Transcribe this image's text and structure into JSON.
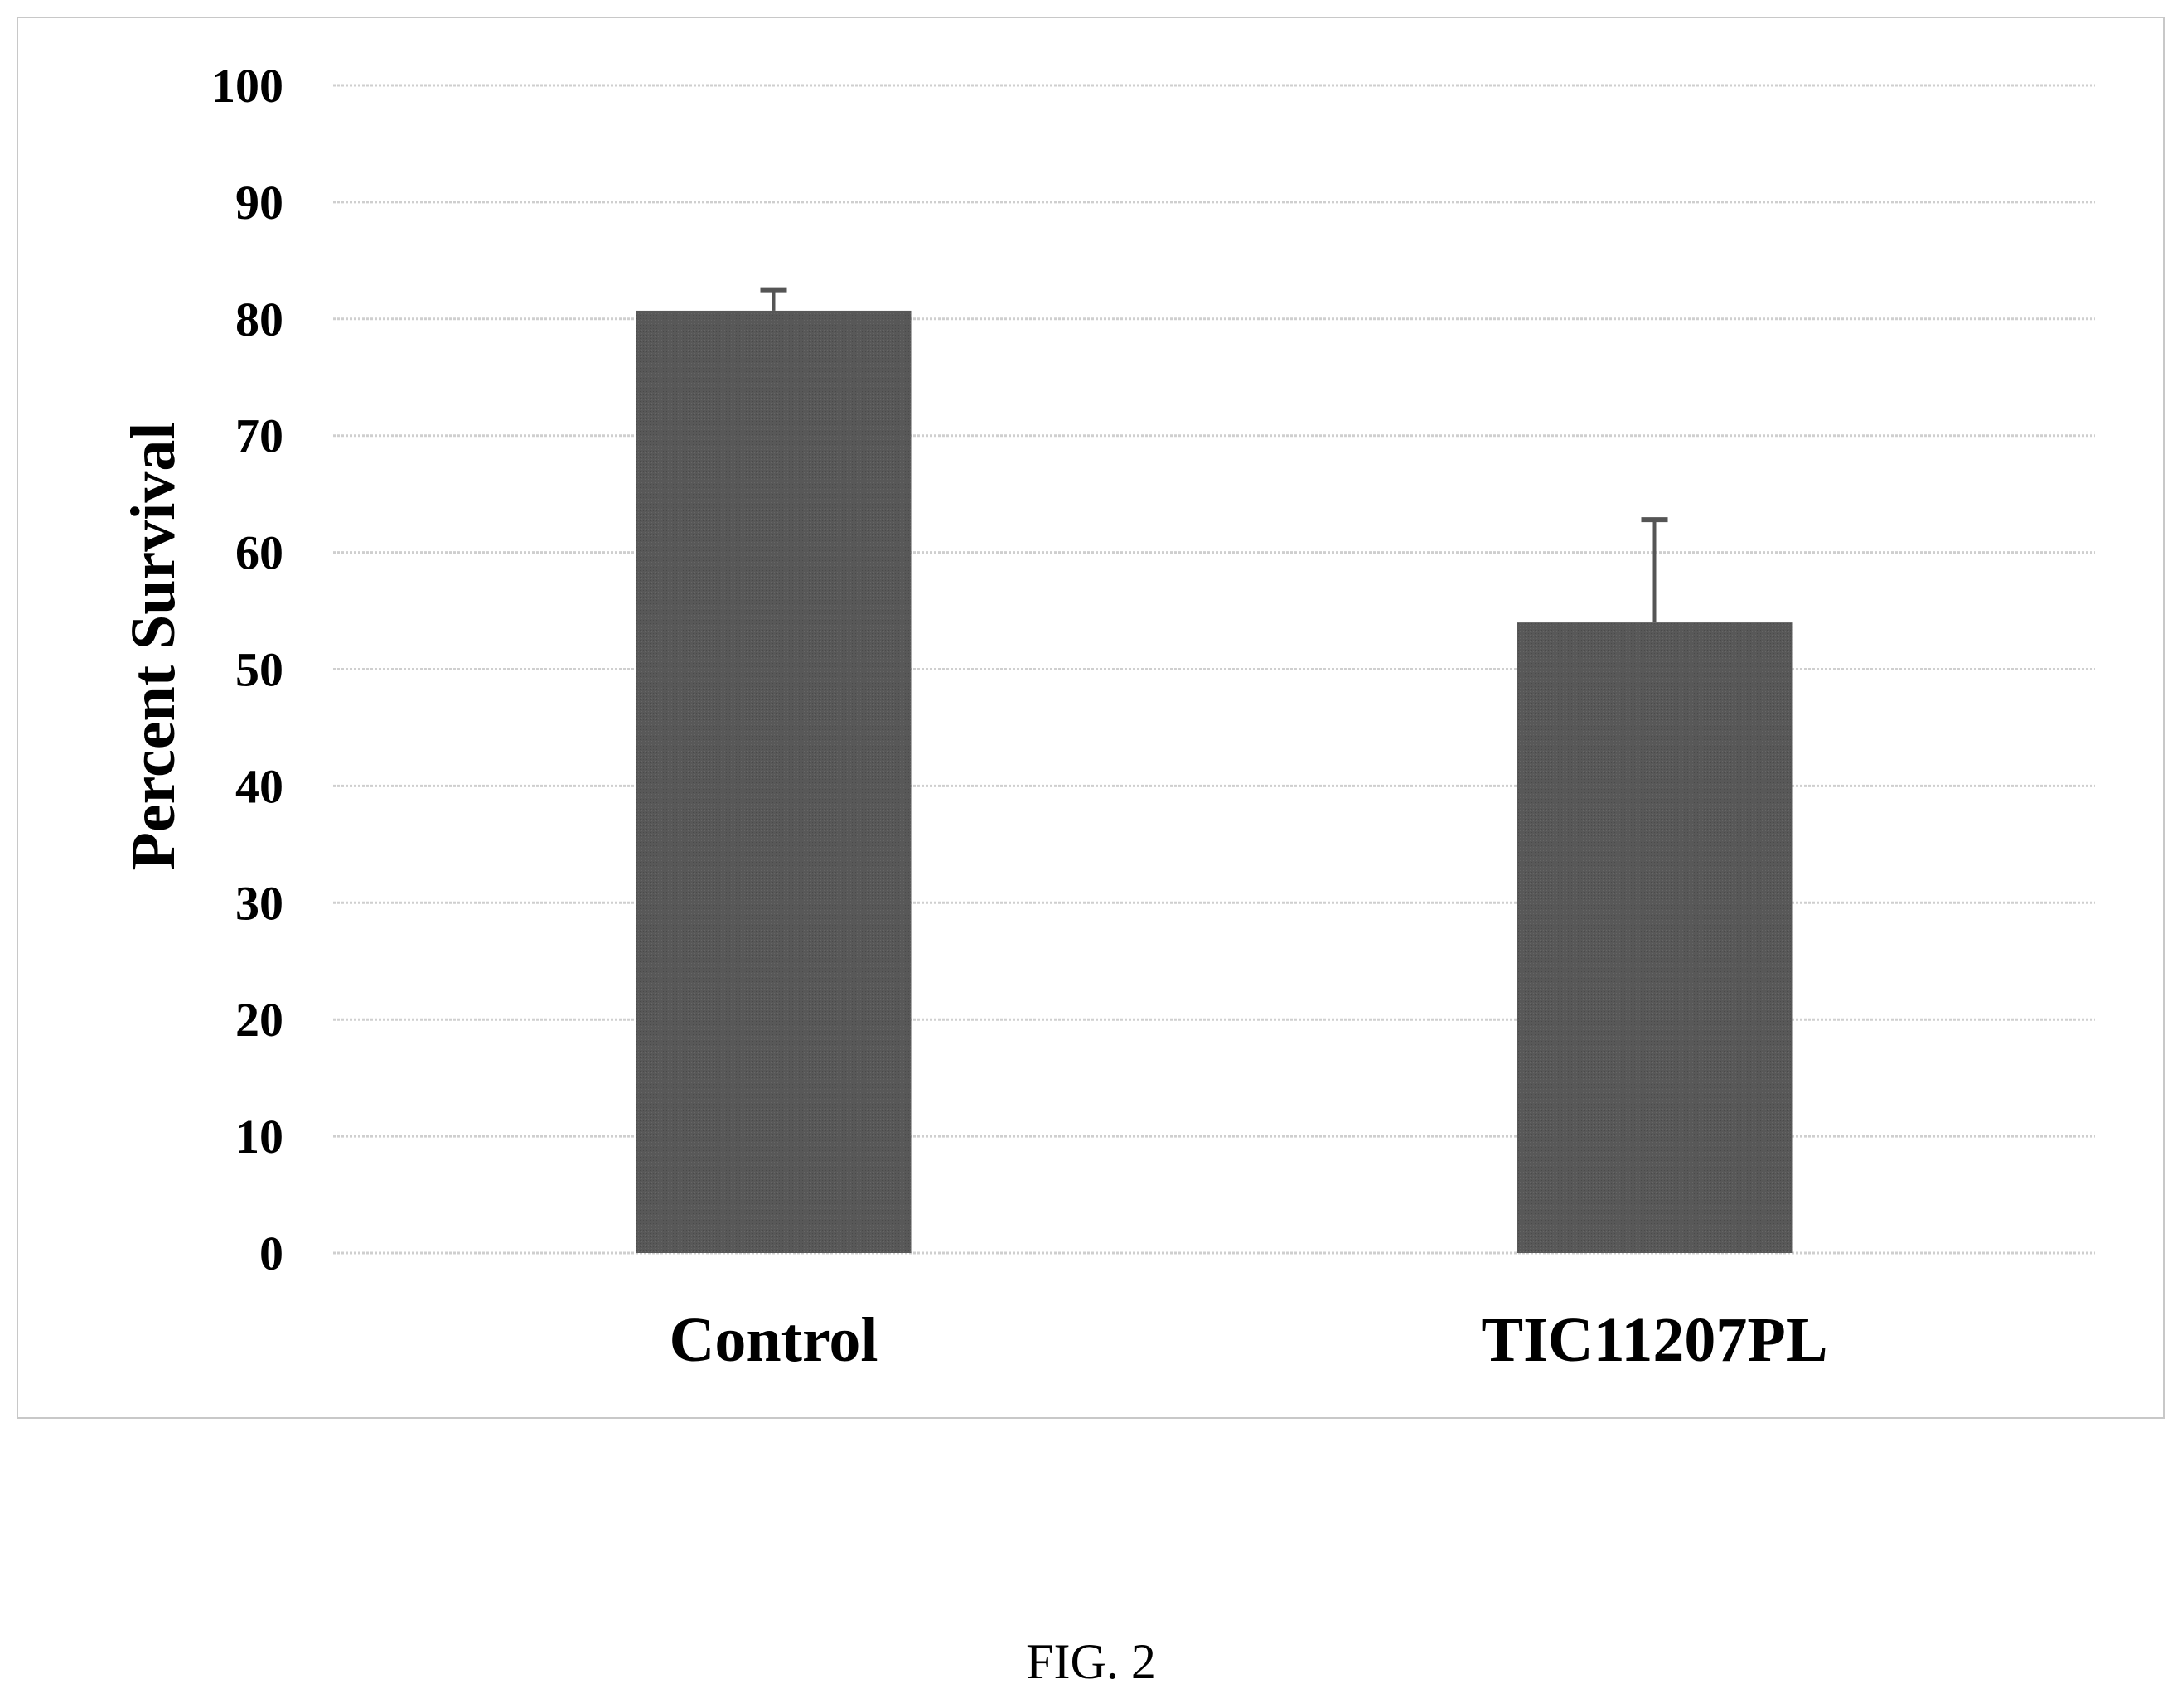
{
  "chart_data": {
    "type": "bar",
    "categories": [
      "Control",
      "TIC11207PL"
    ],
    "values": [
      80.7,
      54.0
    ],
    "error_upper": [
      82.5,
      62.8
    ],
    "ylabel": "Percent Survival",
    "xlabel": "",
    "ylim": [
      0,
      100
    ],
    "yticks": [
      0,
      10,
      20,
      30,
      40,
      50,
      60,
      70,
      80,
      90,
      100
    ],
    "grid": true,
    "legend": "none",
    "bar_color": "#555555"
  },
  "caption": "FIG. 2"
}
